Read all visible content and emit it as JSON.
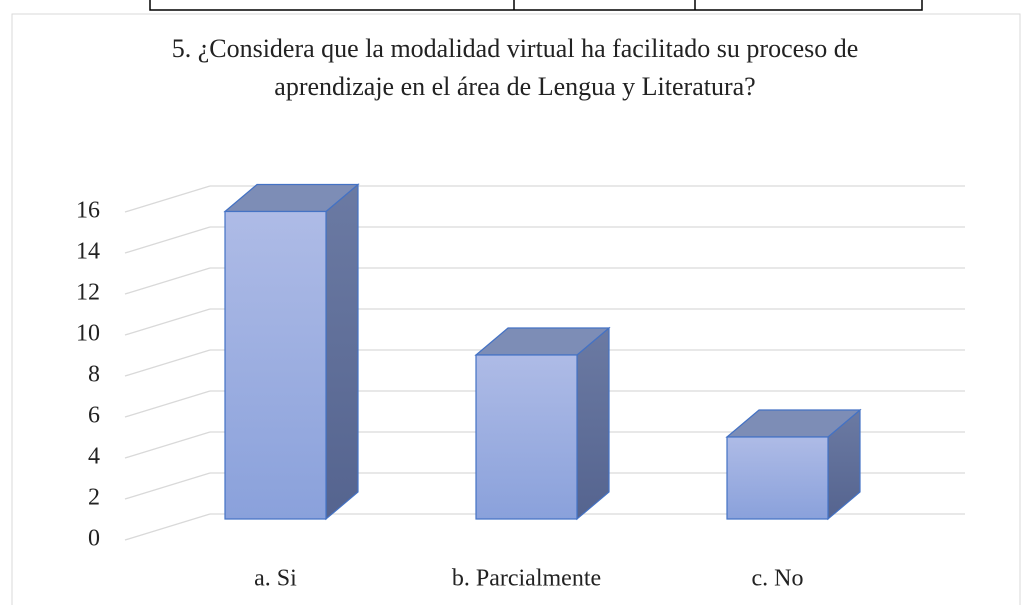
{
  "chart_data": {
    "type": "bar3d",
    "title": "5. ¿Considera que la modalidad virtual ha facilitado su proceso de aprendizaje en el área de Lengua y Literatura?",
    "categories": [
      "a. Si",
      "b. Parcialmente",
      "c. No"
    ],
    "values": [
      15,
      8,
      4
    ],
    "color": "#8fa5dd",
    "ylim": [
      0,
      18
    ],
    "yticks": [
      0,
      2,
      4,
      6,
      8,
      10,
      12,
      14,
      16
    ],
    "grid": true
  }
}
